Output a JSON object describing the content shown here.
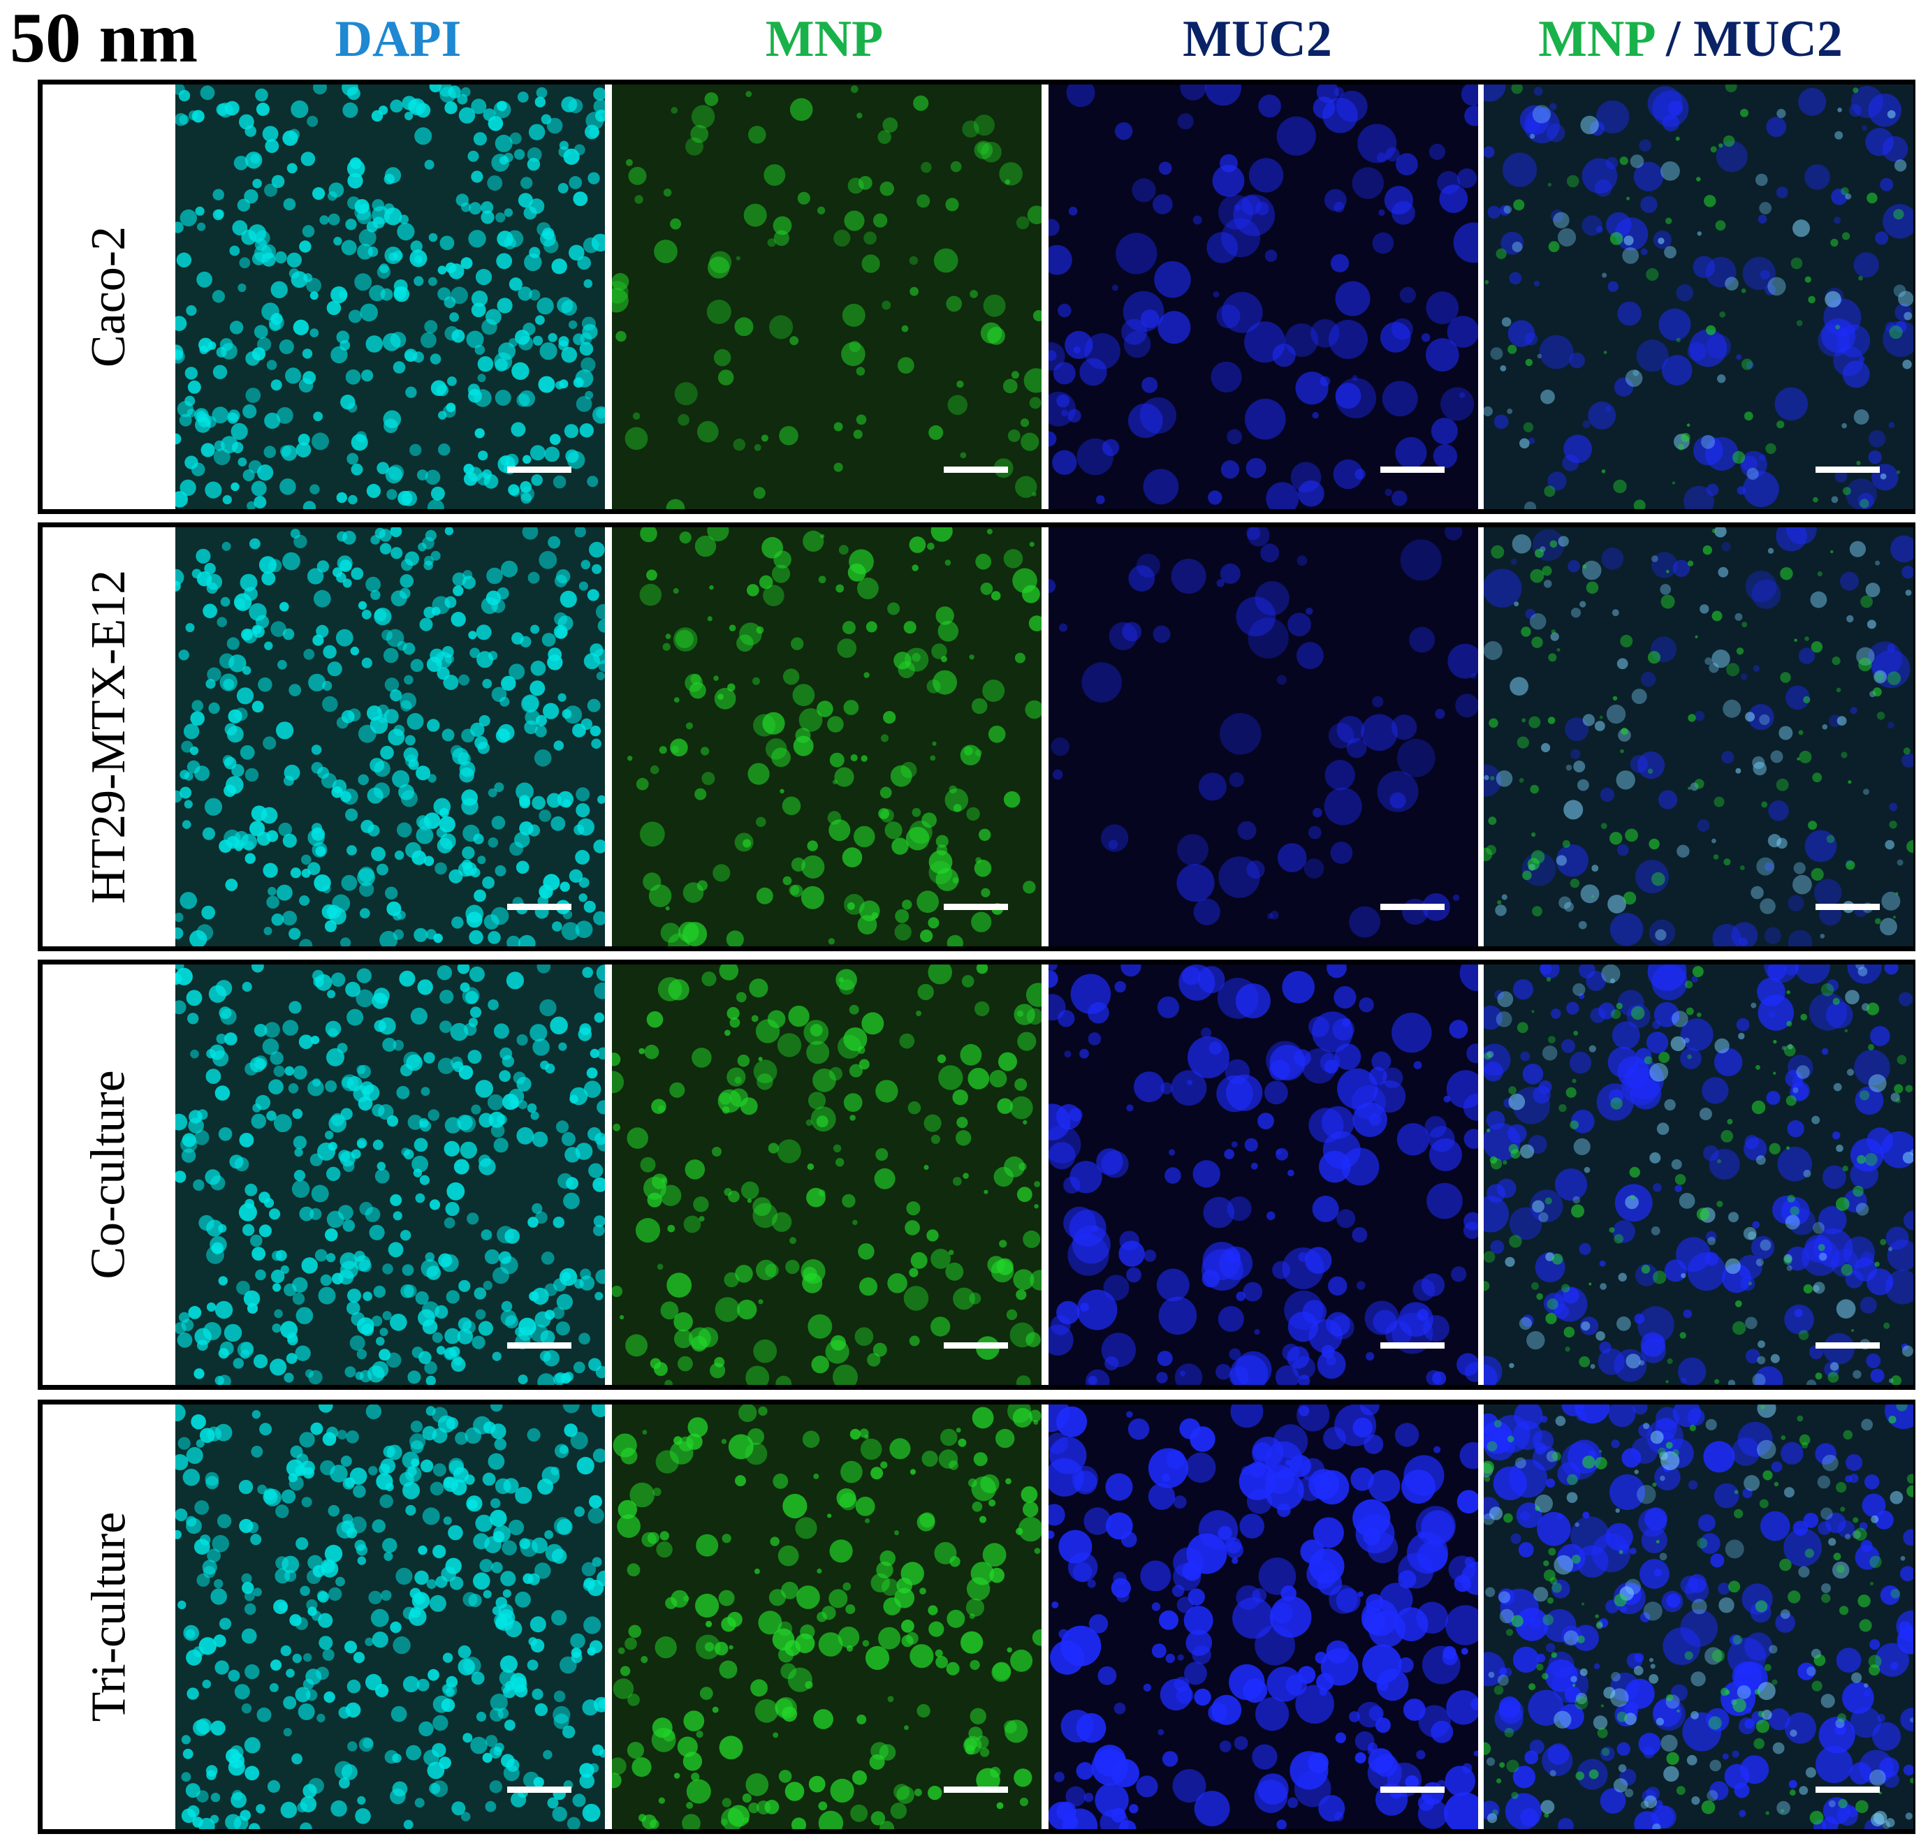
{
  "figure": {
    "size_label": "50 nm",
    "columns": [
      {
        "key": "dapi",
        "label": "DAPI",
        "color": "#1e88d2"
      },
      {
        "key": "mnp",
        "label": "MNP",
        "color": "#19b24a"
      },
      {
        "key": "muc2",
        "label": "MUC2",
        "color": "#0a2266"
      },
      {
        "key": "merge",
        "label_a": "MNP",
        "separator": " / ",
        "label_b": "MUC2",
        "color_a": "#19b24a",
        "color_b": "#0a2266"
      }
    ],
    "rows": [
      {
        "label": "Caco-2",
        "mnp_level": 0.25,
        "muc2_level": 0.45
      },
      {
        "label": "HT29-MTX-E12",
        "mnp_level": 0.55,
        "muc2_level": 0.2
      },
      {
        "label": "Co-culture",
        "mnp_level": 0.6,
        "muc2_level": 0.7
      },
      {
        "label": "Tri-culture",
        "mnp_level": 0.75,
        "muc2_level": 0.95
      }
    ],
    "channel_colors": {
      "dapi_bg": "#0b2e2e",
      "dapi_fg": "#00e5e5",
      "mnp_bg": "#0f2a0c",
      "mnp_fg": "#22d82a",
      "muc2_bg": "#05051f",
      "muc2_fg": "#1e2cff"
    }
  }
}
